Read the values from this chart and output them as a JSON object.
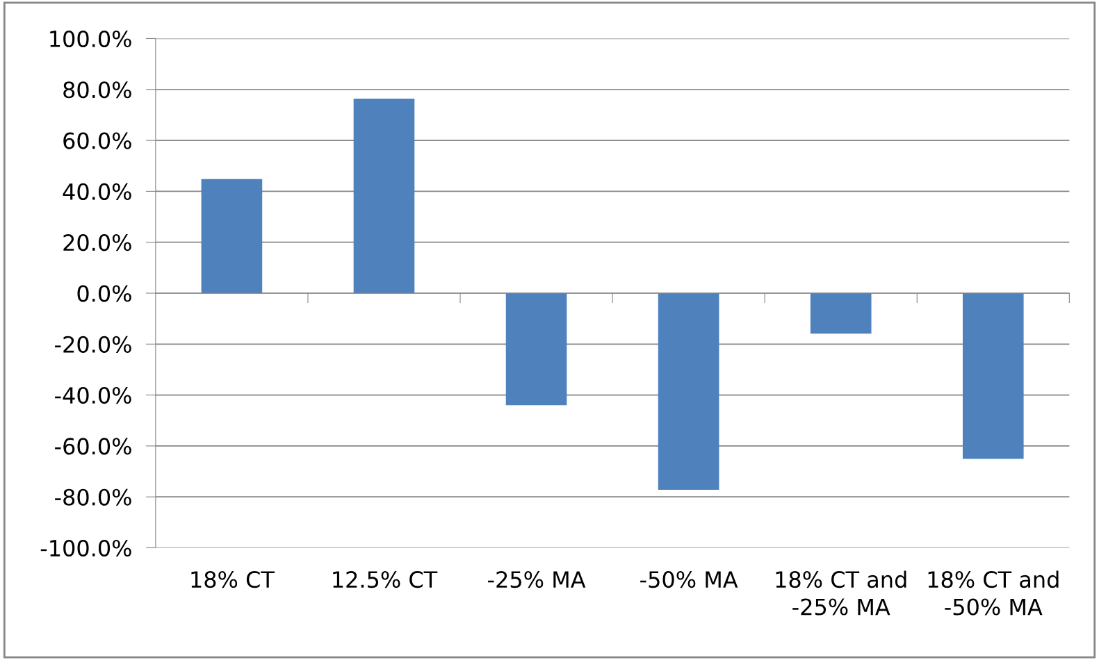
{
  "chart_data": {
    "type": "bar",
    "categories": [
      "18% CT",
      "12.5% CT",
      "-25% MA",
      "-50% MA",
      "18% CT and\n-25% MA",
      "18% CT and\n-50% MA"
    ],
    "values": [
      44.8,
      76.4,
      -44,
      -77.2,
      -15.9,
      -65.1
    ],
    "color": "#4f81bd",
    "ylim": [
      -100,
      100
    ],
    "yticks": [
      {
        "value": -100,
        "label": "-100.0%"
      },
      {
        "value": -80,
        "label": "-80.0%"
      },
      {
        "value": -60,
        "label": "-60.0%"
      },
      {
        "value": -40,
        "label": "-40.0%"
      },
      {
        "value": -20,
        "label": "-20.0%"
      },
      {
        "value": 0,
        "label": "0.0%"
      },
      {
        "value": 20,
        "label": "20.0%"
      },
      {
        "value": 40,
        "label": "40.0%"
      },
      {
        "value": 60,
        "label": "60.0%"
      },
      {
        "value": 80,
        "label": "80.0%"
      },
      {
        "value": 100,
        "label": "100.0%"
      }
    ],
    "grid": "y"
  }
}
